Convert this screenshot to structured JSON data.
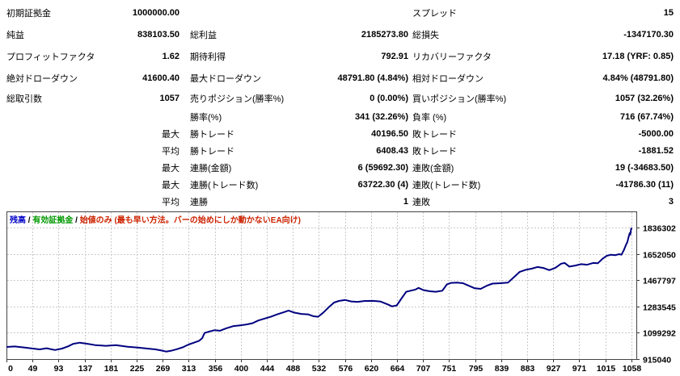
{
  "stats": {
    "rows": [
      {
        "c1": "初期証拠金",
        "c2": "1000000.00",
        "c3": "",
        "c4": "",
        "c5": "スプレッド",
        "c6": "15"
      },
      {
        "c1": "純益",
        "c2": "838103.50",
        "c3": "総利益",
        "c4": "2185273.80",
        "c5": "総損失",
        "c6": "-1347170.30"
      },
      {
        "c1": "プロフィットファクタ",
        "c2": "1.62",
        "c3": "期待利得",
        "c4": "792.91",
        "c5": "リカバリーファクタ",
        "c6": "17.18 (YRF: 0.85)"
      },
      {
        "c1": "絶対ドローダウン",
        "c2": "41600.40",
        "c3": "最大ドローダウン",
        "c4": "48791.80 (4.84%)",
        "c5": "相対ドローダウン",
        "c6": "4.84% (48791.80)"
      },
      {
        "c1": "総取引数",
        "c2": "1057",
        "c3": "売りポジション(勝率%)",
        "c4": "0 (0.00%)",
        "c5": "買いポジション(勝率%)",
        "c6": "1057 (32.26%)"
      },
      {
        "c1": "",
        "c2": "",
        "c3": "勝率(%)",
        "c4": "341 (32.26%)",
        "c5": "負率 (%)",
        "c6": "716 (67.74%)"
      },
      {
        "c1": "",
        "c2": "最大",
        "c3": "勝トレード",
        "c4": "40196.50",
        "c5": "敗トレード",
        "c6": "-5000.00"
      },
      {
        "c1": "",
        "c2": "平均",
        "c3": "勝トレード",
        "c4": "6408.43",
        "c5": "敗トレード",
        "c6": "-1881.52"
      },
      {
        "c1": "",
        "c2": "最大",
        "c3": "連勝(金額)",
        "c4": "6 (59692.30)",
        "c5": "連敗(金額)",
        "c6": "19 (-34683.50)"
      },
      {
        "c1": "",
        "c2": "最大",
        "c3": "連勝(トレード数)",
        "c4": "63722.30 (4)",
        "c5": "連敗(トレード数)",
        "c6": "-41786.30 (11)"
      },
      {
        "c1": "",
        "c2": "平均",
        "c3": "連勝",
        "c4": "1",
        "c5": "連敗",
        "c6": "3"
      }
    ]
  },
  "chart_data": {
    "type": "line",
    "title": "",
    "legend": {
      "separator": " / ",
      "items": [
        {
          "label": "残高",
          "color": "#0000c8"
        },
        {
          "label": "有効証拠金",
          "color": "#009900"
        },
        {
          "label": "始値のみ (最も早い方法。バーの始めにしか動かないEA向け)",
          "color": "#cc2200"
        }
      ]
    },
    "x_tick_labels": [
      "0",
      "49",
      "93",
      "137",
      "181",
      "225",
      "269",
      "313",
      "356",
      "400",
      "444",
      "488",
      "532",
      "576",
      "620",
      "664",
      "707",
      "751",
      "795",
      "839",
      "883",
      "927",
      "971",
      "1015",
      "1058"
    ],
    "y_tick_values": [
      1836302,
      1652050,
      1467797,
      1283545,
      1099292,
      915040
    ],
    "x_range": [
      0,
      1057
    ],
    "y_axis": {
      "min": 915040,
      "max": 1952520
    },
    "grid": true,
    "grid_color": "#c9c9c9",
    "border_color": "#444444",
    "series": [
      {
        "name": "残高",
        "color": "#000080",
        "points": [
          [
            0,
            1000000
          ],
          [
            14,
            1003500
          ],
          [
            28,
            997000
          ],
          [
            42,
            990500
          ],
          [
            56,
            983000
          ],
          [
            68,
            991000
          ],
          [
            82,
            978500
          ],
          [
            94,
            989000
          ],
          [
            104,
            1004000
          ],
          [
            113,
            1022000
          ],
          [
            124,
            1030000
          ],
          [
            136,
            1023000
          ],
          [
            150,
            1013000
          ],
          [
            168,
            1008000
          ],
          [
            185,
            1013000
          ],
          [
            205,
            1001000
          ],
          [
            222,
            996000
          ],
          [
            240,
            988000
          ],
          [
            252,
            983000
          ],
          [
            262,
            975000
          ],
          [
            270,
            967500
          ],
          [
            278,
            973000
          ],
          [
            288,
            984000
          ],
          [
            298,
            997000
          ],
          [
            308,
            1017000
          ],
          [
            318,
            1032000
          ],
          [
            326,
            1044000
          ],
          [
            331,
            1062000
          ],
          [
            335,
            1098000
          ],
          [
            342,
            1107000
          ],
          [
            352,
            1118000
          ],
          [
            361,
            1114000
          ],
          [
            371,
            1130000
          ],
          [
            383,
            1146000
          ],
          [
            395,
            1152000
          ],
          [
            406,
            1158000
          ],
          [
            416,
            1167000
          ],
          [
            426,
            1186000
          ],
          [
            436,
            1199000
          ],
          [
            447,
            1212000
          ],
          [
            458,
            1229000
          ],
          [
            468,
            1243000
          ],
          [
            477,
            1256000
          ],
          [
            487,
            1241000
          ],
          [
            499,
            1232000
          ],
          [
            510,
            1229000
          ],
          [
            519,
            1216000
          ],
          [
            527,
            1212000
          ],
          [
            536,
            1242000
          ],
          [
            546,
            1283000
          ],
          [
            554,
            1312000
          ],
          [
            562,
            1323000
          ],
          [
            573,
            1330000
          ],
          [
            583,
            1320000
          ],
          [
            594,
            1317000
          ],
          [
            606,
            1323000
          ],
          [
            620,
            1324000
          ],
          [
            632,
            1320000
          ],
          [
            644,
            1300000
          ],
          [
            652,
            1285000
          ],
          [
            660,
            1292000
          ],
          [
            668,
            1340000
          ],
          [
            676,
            1388000
          ],
          [
            684,
            1396000
          ],
          [
            692,
            1404000
          ],
          [
            697,
            1415000
          ],
          [
            705,
            1400000
          ],
          [
            715,
            1392000
          ],
          [
            726,
            1388000
          ],
          [
            737,
            1395000
          ],
          [
            745,
            1440000
          ],
          [
            752,
            1450000
          ],
          [
            762,
            1452000
          ],
          [
            772,
            1448000
          ],
          [
            782,
            1430000
          ],
          [
            792,
            1412000
          ],
          [
            802,
            1408000
          ],
          [
            812,
            1430000
          ],
          [
            822,
            1445000
          ],
          [
            835,
            1448000
          ],
          [
            848,
            1452000
          ],
          [
            858,
            1490000
          ],
          [
            868,
            1528000
          ],
          [
            878,
            1542000
          ],
          [
            888,
            1550000
          ],
          [
            898,
            1562000
          ],
          [
            908,
            1555000
          ],
          [
            918,
            1540000
          ],
          [
            928,
            1555000
          ],
          [
            938,
            1585000
          ],
          [
            944,
            1590000
          ],
          [
            952,
            1565000
          ],
          [
            962,
            1572000
          ],
          [
            972,
            1582000
          ],
          [
            982,
            1578000
          ],
          [
            992,
            1590000
          ],
          [
            1000,
            1588000
          ],
          [
            1008,
            1620000
          ],
          [
            1015,
            1640000
          ],
          [
            1022,
            1648000
          ],
          [
            1030,
            1645000
          ],
          [
            1036,
            1652000
          ],
          [
            1040,
            1648000
          ],
          [
            1044,
            1680000
          ],
          [
            1048,
            1720000
          ],
          [
            1050,
            1737000
          ],
          [
            1052,
            1770000
          ],
          [
            1054,
            1800000
          ],
          [
            1055,
            1790000
          ],
          [
            1056,
            1820000
          ],
          [
            1057,
            1838103
          ]
        ]
      }
    ]
  }
}
